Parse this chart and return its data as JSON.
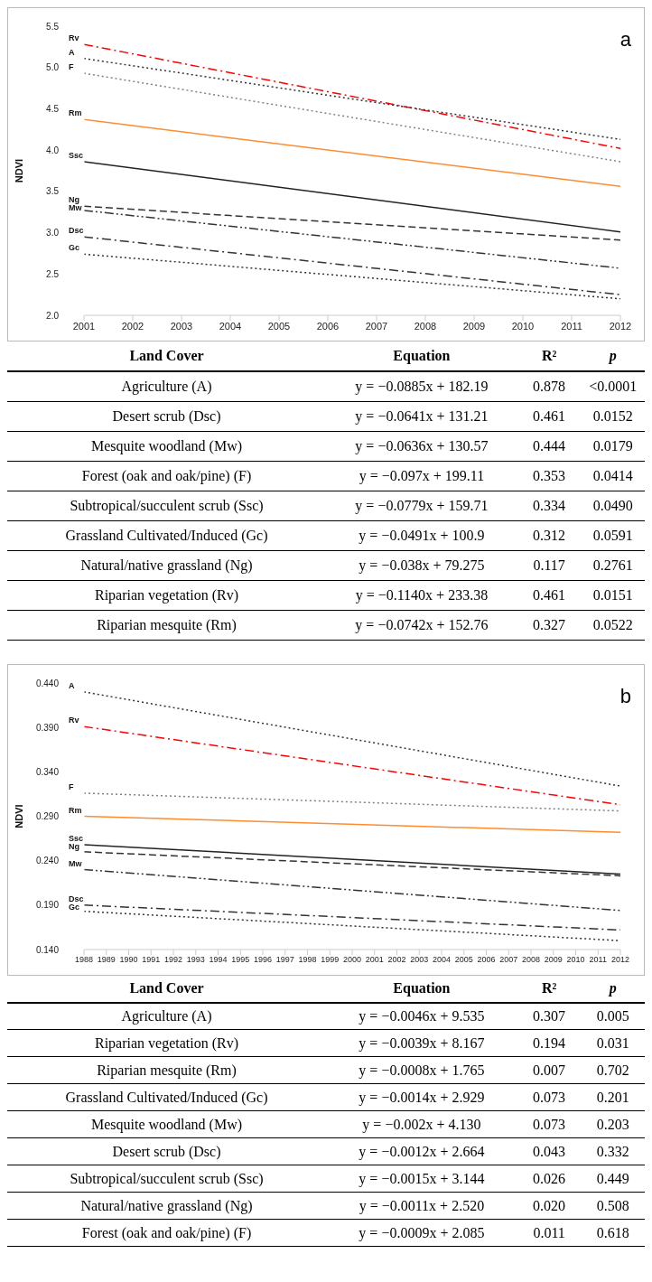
{
  "chart_data": [
    {
      "type": "line",
      "ylabel": "NDVI",
      "annotations": [
        "a"
      ],
      "xlim": [
        2001,
        2012
      ],
      "xticks": [
        2001,
        2002,
        2003,
        2004,
        2005,
        2006,
        2007,
        2008,
        2009,
        2010,
        2011,
        2012
      ],
      "ylim": [
        2.0,
        5.5
      ],
      "yticks": [
        {
          "value": 2,
          "label": "2.0"
        },
        {
          "value": 2.5,
          "label": "2.5"
        },
        {
          "value": 3,
          "label": "3.0"
        },
        {
          "value": 3.5,
          "label": "3.5"
        },
        {
          "value": 4,
          "label": "4.0"
        },
        {
          "value": 4.5,
          "label": "4.5"
        },
        {
          "value": 5,
          "label": "5.0"
        },
        {
          "value": 5.5,
          "label": "5.5"
        }
      ],
      "marker": "none",
      "series": [
        {
          "name": "Rv",
          "color": "#ff0000",
          "line_style": "dashdot",
          "x": [
            2001,
            2012
          ],
          "values": [
            5.28,
            4.02
          ]
        },
        {
          "name": "A",
          "color": "#333333",
          "line_style": "dotted",
          "x": [
            2001,
            2012
          ],
          "values": [
            5.11,
            4.13
          ]
        },
        {
          "name": "F",
          "color": "#808080",
          "line_style": "dotted",
          "x": [
            2001,
            2012
          ],
          "values": [
            4.93,
            3.86
          ]
        },
        {
          "name": "Rm",
          "color": "#ff8c2e",
          "line_style": "solid",
          "x": [
            2001,
            2012
          ],
          "values": [
            4.37,
            3.56
          ]
        },
        {
          "name": "Ssc",
          "color": "#222222",
          "line_style": "solid",
          "x": [
            2001,
            2012
          ],
          "values": [
            3.86,
            3.01
          ]
        },
        {
          "name": "Ng",
          "color": "#333333",
          "line_style": "dashed",
          "x": [
            2001,
            2012
          ],
          "values": [
            3.32,
            2.91
          ]
        },
        {
          "name": "Mw",
          "color": "#333333",
          "line_style": "dashdotdot",
          "x": [
            2001,
            2012
          ],
          "values": [
            3.27,
            2.57
          ]
        },
        {
          "name": "Dsc",
          "color": "#333333",
          "line_style": "dashdot",
          "x": [
            2001,
            2012
          ],
          "values": [
            2.95,
            2.25
          ]
        },
        {
          "name": "Gc",
          "color": "#333333",
          "line_style": "dotted",
          "x": [
            2001,
            2012
          ],
          "values": [
            2.74,
            2.2
          ]
        }
      ]
    },
    {
      "type": "other",
      "categories": [
        "Land Cover",
        "Equation",
        "R²",
        "p"
      ],
      "annotations": [
        "Agriculture (A)",
        "y = −0.0885x + 182.19",
        "0.878",
        "<0.0001",
        "Desert scrub (Dsc)",
        "y = −0.0641x + 131.21",
        "0.461",
        "0.0152",
        "Mesquite woodland (Mw)",
        "y = −0.0636x + 130.57",
        "0.444",
        "0.0179",
        "Forest (oak and oak/pine) (F)",
        "y = −0.097x + 199.11",
        "0.353",
        "0.0414",
        "Subtropical/succulent scrub (Ssc)",
        "y = −0.0779x + 159.71",
        "0.334",
        "0.0490",
        "Grassland Cultivated/Induced (Gc)",
        "y = −0.0491x + 100.9",
        "0.312",
        "0.0591",
        "Natural/native grassland (Ng)",
        "y = −0.038x + 79.275",
        "0.117",
        "0.2761",
        "Riparian vegetation (Rv)",
        "y = −0.1140x + 233.38",
        "0.461",
        "0.0151",
        "Riparian mesquite (Rm)",
        "y = −0.0742x + 152.76",
        "0.327",
        "0.0522"
      ]
    },
    {
      "type": "line",
      "ylabel": "NDVI",
      "annotations": [
        "b"
      ],
      "xlim": [
        1988,
        2012
      ],
      "xticks": [
        1988,
        1989,
        1990,
        1991,
        1992,
        1993,
        1994,
        1995,
        1996,
        1997,
        1998,
        1999,
        2000,
        2001,
        2002,
        2003,
        2004,
        2005,
        2006,
        2007,
        2008,
        2009,
        2010,
        2011,
        2012
      ],
      "ylim": [
        0.14,
        0.44
      ],
      "yticks": [
        {
          "value": 0.14,
          "label": "0.140"
        },
        {
          "value": 0.19,
          "label": "0.190"
        },
        {
          "value": 0.24,
          "label": "0.240"
        },
        {
          "value": 0.29,
          "label": "0.290"
        },
        {
          "value": 0.34,
          "label": "0.340"
        },
        {
          "value": 0.39,
          "label": "0.390"
        },
        {
          "value": 0.44,
          "label": "0.440"
        }
      ],
      "marker": "none",
      "series": [
        {
          "name": "A",
          "color": "#333333",
          "line_style": "dotted",
          "x": [
            1988,
            2012
          ],
          "values": [
            0.43,
            0.324
          ]
        },
        {
          "name": "Rv",
          "color": "#ff0000",
          "line_style": "dashdot",
          "x": [
            1988,
            2012
          ],
          "values": [
            0.391,
            0.303
          ]
        },
        {
          "name": "F",
          "color": "#808080",
          "line_style": "dotted",
          "x": [
            1988,
            2012
          ],
          "values": [
            0.316,
            0.296
          ]
        },
        {
          "name": "Rm",
          "color": "#ff8c2e",
          "line_style": "solid",
          "x": [
            1988,
            2012
          ],
          "values": [
            0.29,
            0.272
          ]
        },
        {
          "name": "Ssc",
          "color": "#222222",
          "line_style": "solid",
          "x": [
            1988,
            2012
          ],
          "values": [
            0.258,
            0.225
          ]
        },
        {
          "name": "Ng",
          "color": "#333333",
          "line_style": "dashed",
          "x": [
            1988,
            2012
          ],
          "values": [
            0.25,
            0.223
          ]
        },
        {
          "name": "Mw",
          "color": "#333333",
          "line_style": "dashdotdot",
          "x": [
            1988,
            2012
          ],
          "values": [
            0.23,
            0.184
          ]
        },
        {
          "name": "Dsc",
          "color": "#333333",
          "line_style": "dashdot",
          "x": [
            1988,
            2012
          ],
          "values": [
            0.19,
            0.162
          ]
        },
        {
          "name": "Gc",
          "color": "#333333",
          "line_style": "dotted",
          "x": [
            1988,
            2012
          ],
          "values": [
            0.183,
            0.15
          ]
        }
      ]
    },
    {
      "type": "other",
      "categories": [
        "Land Cover",
        "Equation",
        "R²",
        "p"
      ],
      "annotations": [
        "Agriculture (A)",
        "y = −0.0046x + 9.535",
        "0.307",
        "0.005",
        "Riparian vegetation (Rv)",
        "y = −0.0039x + 8.167",
        "0.194",
        "0.031",
        "Riparian mesquite (Rm)",
        "y = −0.0008x + 1.765",
        "0.007",
        "0.702",
        "Grassland Cultivated/Induced (Gc)",
        "y = −0.0014x + 2.929",
        "0.073",
        "0.201",
        "Mesquite woodland (Mw)",
        "y = −0.002x + 4.130",
        "0.073",
        "0.203",
        "Desert scrub (Dsc)",
        "y = −0.0012x + 2.664",
        "0.043",
        "0.332",
        "Subtropical/succulent scrub (Ssc)",
        "y = −0.0015x + 3.144",
        "0.026",
        "0.449",
        "Natural/native grassland (Ng)",
        "y = −0.0011x + 2.520",
        "0.020",
        "0.508",
        "Forest (oak and oak/pine) (F)",
        "y = −0.0009x + 2.085",
        "0.011",
        "0.618"
      ]
    }
  ]
}
